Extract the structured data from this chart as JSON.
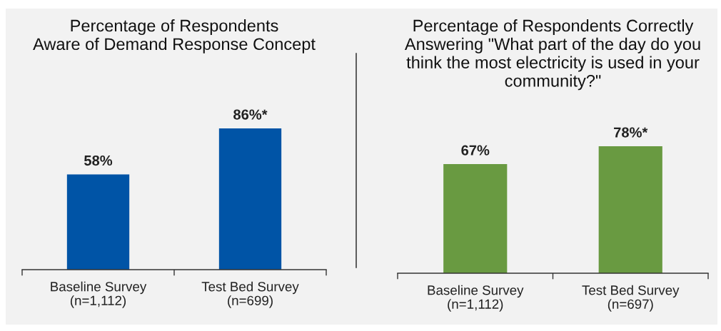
{
  "chart_data": [
    {
      "type": "bar",
      "title": "Percentage of Respondents\nAware of Demand Response Concept",
      "categories": [
        "Baseline Survey\n(n=1,112)",
        "Test Bed Survey\n(n=699)"
      ],
      "values": [
        58,
        86
      ],
      "value_labels": [
        "58%",
        "86%*"
      ],
      "color": "#0054a6"
    },
    {
      "type": "bar",
      "title": "Percentage of Respondents Correctly\nAnswering \"What part of the day do you\nthink the most electricity is used in your\ncommunity?\"",
      "categories": [
        "Baseline Survey\n(n=1,112)",
        "Test Bed Survey\n(n=697)"
      ],
      "values": [
        67,
        78
      ],
      "value_labels": [
        "67%",
        "78%*"
      ],
      "color": "#699a41"
    }
  ]
}
